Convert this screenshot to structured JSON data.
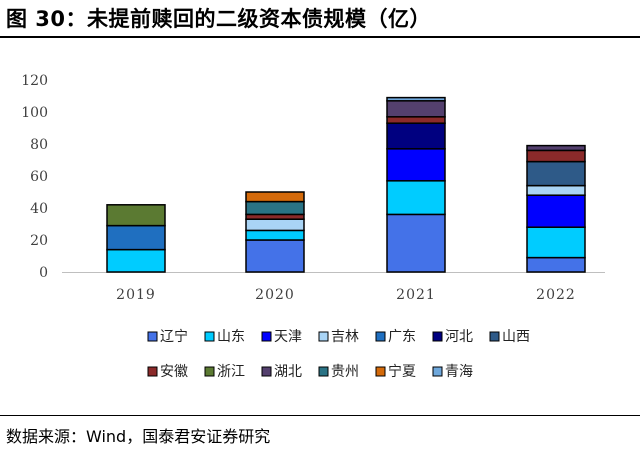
{
  "header": {
    "title": "图 30：未提前赎回的二级资本债规模（亿）"
  },
  "footer": {
    "source": "数据来源：Wind，国泰君安证券研究"
  },
  "chart_data": {
    "type": "bar",
    "stacked": true,
    "categories": [
      "2019",
      "2020",
      "2021",
      "2022"
    ],
    "ylim": [
      0,
      120
    ],
    "yticks": [
      "0",
      "20",
      "40",
      "60",
      "80",
      "100",
      "120"
    ],
    "grid": false,
    "legend_position": "bottom",
    "series": [
      {
        "name": "辽宁",
        "color": "#4472E8",
        "values": [
          0,
          20,
          36,
          9
        ]
      },
      {
        "name": "山东",
        "color": "#00CCFF",
        "values": [
          14,
          6,
          21,
          19
        ]
      },
      {
        "name": "天津",
        "color": "#0000FF",
        "values": [
          0,
          0,
          20,
          20
        ]
      },
      {
        "name": "吉林",
        "color": "#A9D4F5",
        "values": [
          0,
          7,
          0,
          6
        ]
      },
      {
        "name": "广东",
        "color": "#1F6FC0",
        "values": [
          15,
          0,
          0,
          0
        ]
      },
      {
        "name": "河北",
        "color": "#000080",
        "values": [
          0,
          0,
          16,
          0
        ]
      },
      {
        "name": "山西",
        "color": "#2E5A88",
        "values": [
          0,
          0,
          0,
          15
        ]
      },
      {
        "name": "安徽",
        "color": "#8B2A2A",
        "values": [
          0,
          3,
          4,
          7
        ]
      },
      {
        "name": "浙江",
        "color": "#5B7A32",
        "values": [
          13,
          0,
          0,
          0
        ]
      },
      {
        "name": "湖北",
        "color": "#54406E",
        "values": [
          0,
          0,
          10,
          3
        ]
      },
      {
        "name": "贵州",
        "color": "#2A7385",
        "values": [
          0,
          8,
          0,
          0
        ]
      },
      {
        "name": "宁夏",
        "color": "#D46A0A",
        "values": [
          0,
          6,
          0,
          0
        ]
      },
      {
        "name": "青海",
        "color": "#6FA8DC",
        "values": [
          0,
          0,
          2,
          0
        ]
      }
    ]
  }
}
